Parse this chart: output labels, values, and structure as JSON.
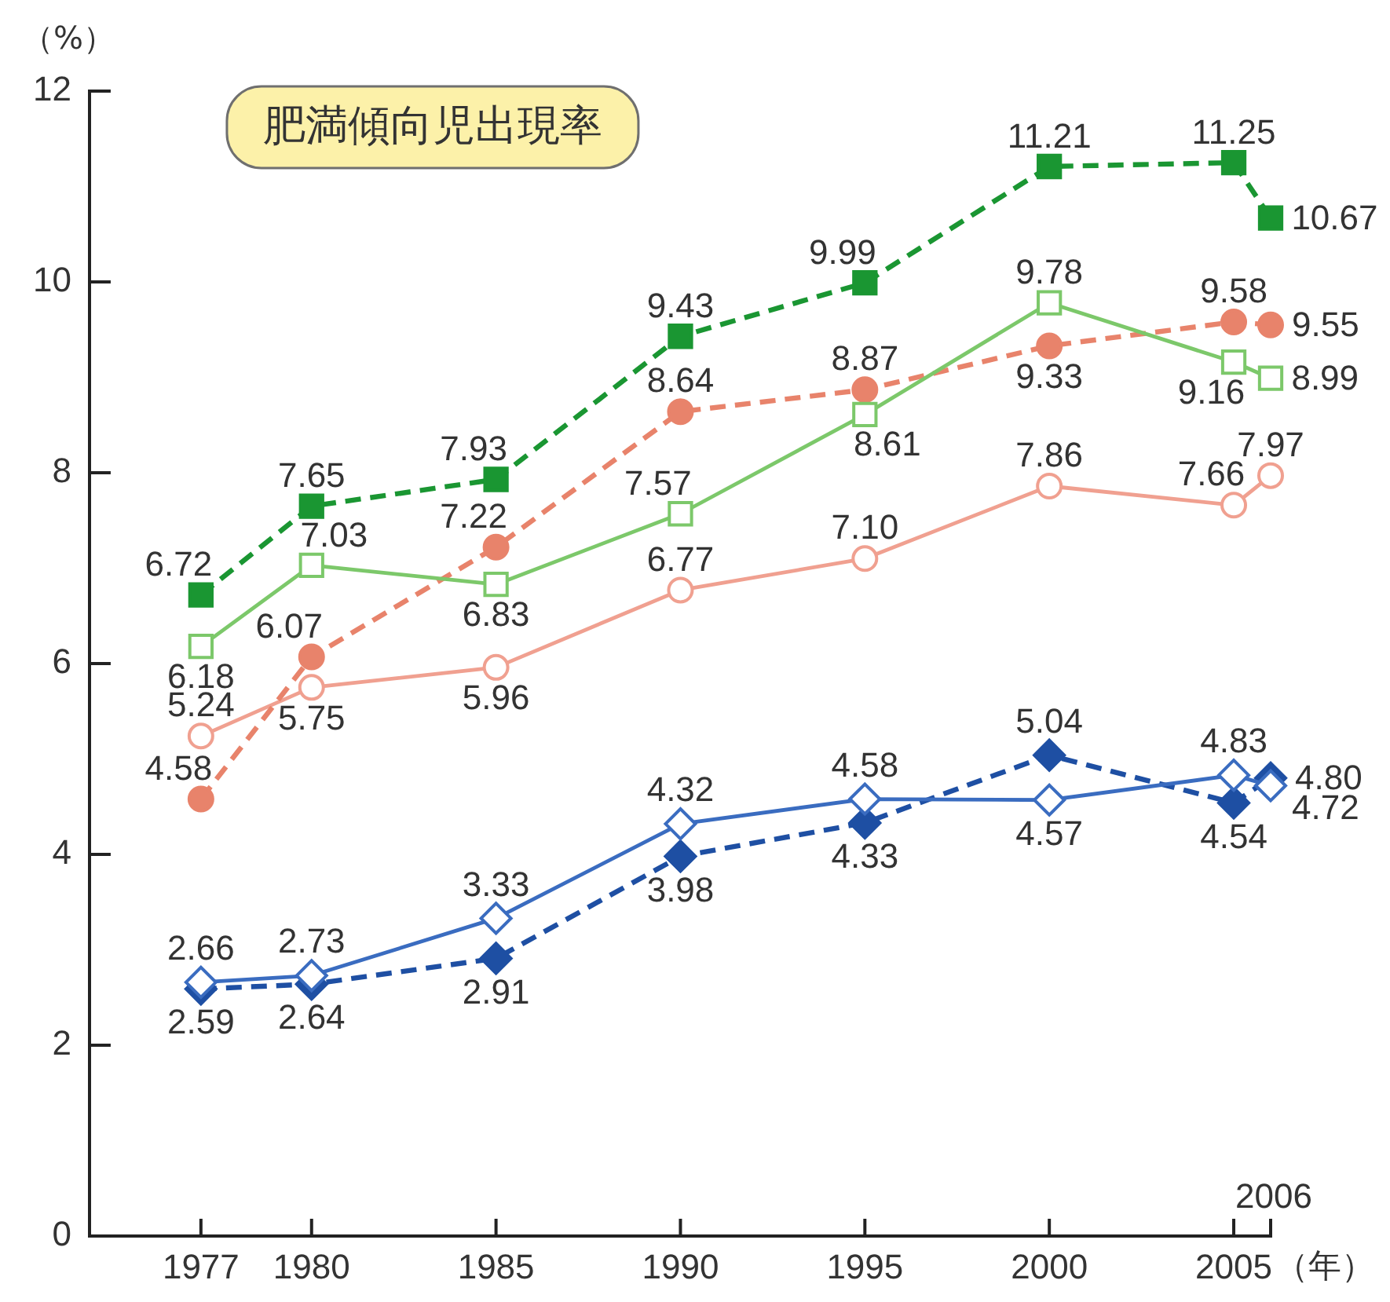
{
  "chart_data": {
    "type": "line",
    "title": "肥満傾向児出現率",
    "ylabel": "（%）",
    "xlabel": "（年）",
    "x": [
      1977,
      1980,
      1985,
      1990,
      1995,
      2000,
      2005,
      2006
    ],
    "xlim": [
      1974,
      2006
    ],
    "xticks": [
      1977,
      1980,
      1985,
      1990,
      1995,
      2000,
      2005,
      {
        "value": 2006,
        "label": null
      }
    ],
    "ylim": [
      0,
      12
    ],
    "yticks": [
      0,
      2,
      4,
      6,
      8,
      10,
      12
    ],
    "annotations": [
      "2006"
    ],
    "series": [
      {
        "color": "#1a9632",
        "line_style": "dashed",
        "marker": "square",
        "values": [
          6.72,
          7.65,
          7.93,
          9.43,
          9.99,
          11.21,
          11.25,
          10.67
        ],
        "value_labels": [
          "6.72",
          "7.65",
          "7.93",
          "9.43",
          "9.99",
          "11.21",
          "11.25",
          "10.67"
        ]
      },
      {
        "color": "#7cc86a",
        "line_style": "solid",
        "marker": "square",
        "values": [
          6.18,
          7.03,
          6.83,
          7.57,
          8.61,
          9.78,
          9.16,
          8.99
        ],
        "value_labels": [
          "6.18",
          "7.03",
          "6.83",
          "7.57",
          "8.61",
          "9.78",
          "9.16",
          "8.99"
        ]
      },
      {
        "color": "#e8836b",
        "line_style": "dashed",
        "marker": "circle",
        "values": [
          4.58,
          6.07,
          7.22,
          8.64,
          8.87,
          9.33,
          9.58,
          9.55
        ],
        "value_labels": [
          "4.58",
          "6.07",
          "7.22",
          "8.64",
          "8.87",
          "9.33",
          "9.58",
          "9.55"
        ]
      },
      {
        "color": "#f0a090",
        "line_style": "solid",
        "marker": "circle",
        "values": [
          5.24,
          5.75,
          5.96,
          6.77,
          7.1,
          7.86,
          7.66,
          7.97
        ],
        "value_labels": [
          "5.24",
          "5.75",
          "5.96",
          "6.77",
          "7.10",
          "7.86",
          "7.66",
          "7.97"
        ]
      },
      {
        "color": "#3a6cc0",
        "line_style": "solid",
        "marker": "diamond",
        "values": [
          2.66,
          2.73,
          3.33,
          4.32,
          4.58,
          4.57,
          4.83,
          4.72
        ],
        "value_labels": [
          "2.66",
          "2.73",
          "3.33",
          "4.32",
          "4.58",
          "4.57",
          "4.83",
          "4.72"
        ]
      },
      {
        "color": "#1e4fa3",
        "line_style": "dashed",
        "marker": "diamond",
        "values": [
          2.59,
          2.64,
          2.91,
          3.98,
          4.33,
          5.04,
          4.54,
          4.8
        ],
        "value_labels": [
          "2.59",
          "2.64",
          "2.91",
          "3.98",
          "4.33",
          "5.04",
          "4.54",
          "4.80"
        ]
      }
    ]
  }
}
